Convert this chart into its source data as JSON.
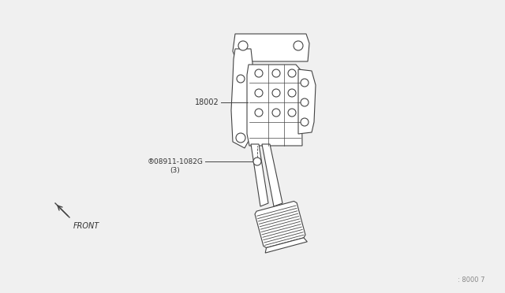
{
  "bg_color": "#f0f0f0",
  "line_color": "#444444",
  "text_color": "#333333",
  "part_label_1": "18002",
  "part_label_2": "®08911-1082G",
  "part_label_2b": "(3)",
  "front_label": "FRONT",
  "page_ref": ": 8000 7",
  "lw": 0.8
}
